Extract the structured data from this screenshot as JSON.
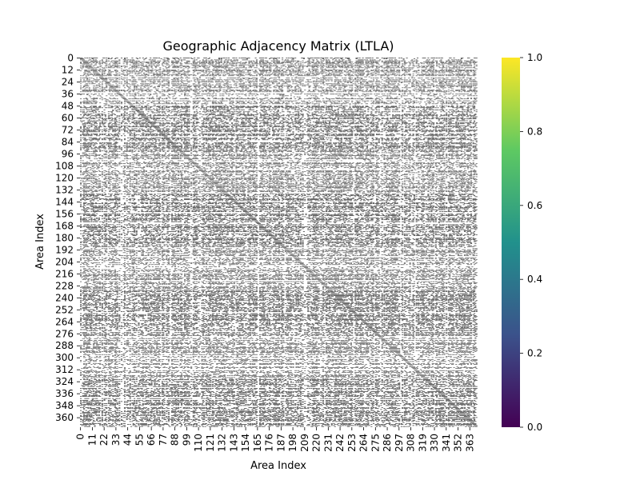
{
  "chart_data": {
    "type": "heatmap",
    "title": "Geographic Adjacency Matrix (LTLA)",
    "xlabel": "Area Index",
    "ylabel": "Area Index",
    "n": 370,
    "cell_step": 1,
    "ytick_labels": [
      "0",
      "12",
      "24",
      "36",
      "48",
      "60",
      "72",
      "84",
      "96",
      "108",
      "120",
      "132",
      "144",
      "156",
      "168",
      "180",
      "192",
      "204",
      "216",
      "228",
      "240",
      "252",
      "264",
      "276",
      "288",
      "300",
      "312",
      "324",
      "336",
      "348",
      "360"
    ],
    "xtick_labels": [
      "0",
      "11",
      "22",
      "33",
      "44",
      "55",
      "66",
      "77",
      "88",
      "99",
      "110",
      "121",
      "132",
      "143",
      "154",
      "165",
      "176",
      "187",
      "198",
      "209",
      "220",
      "231",
      "242",
      "253",
      "264",
      "275",
      "286",
      "297",
      "308",
      "319",
      "330",
      "341",
      "352",
      "363"
    ],
    "xtick_step": 11,
    "ytick_step": 12,
    "colorbar": {
      "min": 0.0,
      "max": 1.0,
      "tick_labels": [
        "0.0",
        "0.2",
        "0.4",
        "0.6",
        "0.8",
        "1.0"
      ],
      "colormap": "viridis",
      "colors": [
        "#440154",
        "#3b528b",
        "#21918c",
        "#5ec962",
        "#fde725"
      ]
    },
    "values_description_colors": {
      "zero": "#ffffff",
      "one": "#000000"
    },
    "grid": false,
    "legend": "colorbar-right"
  }
}
